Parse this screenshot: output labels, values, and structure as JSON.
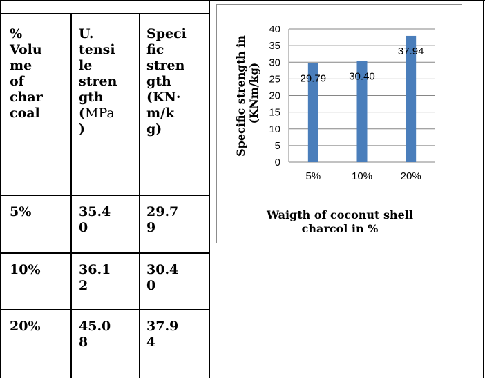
{
  "table": {
    "headers": [
      [
        "%",
        "Volu",
        "me",
        "of",
        "char",
        "coal"
      ],
      [
        "U.",
        "tensi",
        "le",
        "stren",
        "gth",
        "(",
        "MPa",
        ")"
      ],
      [
        "Speci",
        "fic",
        "stren",
        "gth",
        "(KN·",
        "m/k",
        "g)"
      ]
    ],
    "rows": [
      [
        [
          "5%"
        ],
        [
          "35.4",
          "0"
        ],
        [
          "29.7",
          "9"
        ]
      ],
      [
        [
          "10%"
        ],
        [
          "36.1",
          "2"
        ],
        [
          "30.4",
          "0"
        ]
      ],
      [
        [
          "20%"
        ],
        [
          "45.0",
          "8"
        ],
        [
          "37.9",
          "4"
        ]
      ]
    ]
  },
  "chart_data": {
    "type": "bar",
    "categories": [
      "5%",
      "10%",
      "20%"
    ],
    "values": [
      29.79,
      30.4,
      37.94
    ],
    "data_labels": [
      "29.79",
      "30.40",
      "37.94"
    ],
    "ylim": [
      0,
      40
    ],
    "yticks": [
      "0",
      "5",
      "10",
      "15",
      "20",
      "25",
      "30",
      "35",
      "40"
    ],
    "ylabel_line1": "Specific strength in",
    "ylabel_line2": "(KNm/kg)",
    "xlabel_line1": "Waigth of coconut shell",
    "xlabel_line2": "charcol in %",
    "grid": true,
    "bar_color": "#4a7ebb",
    "legend": "none"
  }
}
